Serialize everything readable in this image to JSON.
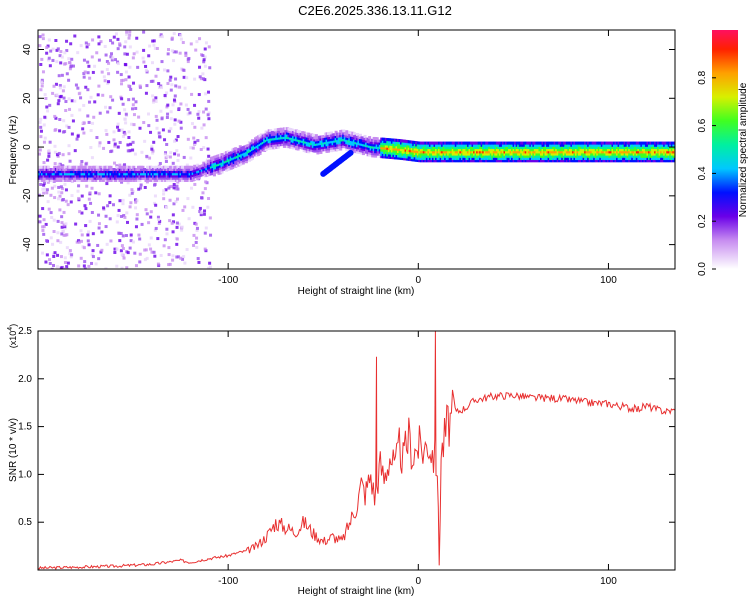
{
  "title": "C2E6.2025.336.13.11.G12",
  "colors": {
    "series": "#e83030",
    "frame": "#000000"
  },
  "chart_data": [
    {
      "type": "heatmap",
      "name": "spectrogram",
      "xlabel": "Height of straight line (km)",
      "ylabel": "Frequency (Hz)",
      "xlim": [
        -200,
        135
      ],
      "ylim": [
        -50,
        48
      ],
      "xticks": [
        -100,
        0,
        100
      ],
      "xtick_labels": [
        "-100",
        "0",
        "100"
      ],
      "yticks": [
        -40,
        -20,
        0,
        20,
        40
      ],
      "ytick_labels": [
        "-40",
        "-20",
        "0",
        "20",
        "40"
      ],
      "colorbar": {
        "label": "Normalized spectral amplitude",
        "range": [
          0,
          1
        ],
        "ticks": [
          0.0,
          0.2,
          0.4,
          0.6,
          0.8
        ],
        "tick_labels": [
          "0.0",
          "0.2",
          "0.4",
          "0.6",
          "0.8"
        ]
      },
      "trace": {
        "description_points": [
          [
            -200,
            -11
          ],
          [
            -160,
            -11
          ],
          [
            -120,
            -11
          ],
          [
            -105,
            -7
          ],
          [
            -90,
            -2
          ],
          [
            -80,
            3
          ],
          [
            -70,
            4
          ],
          [
            -55,
            1
          ],
          [
            -40,
            3
          ],
          [
            -25,
            0
          ],
          [
            -10,
            -1
          ],
          [
            0,
            -2
          ],
          [
            50,
            -2
          ],
          [
            100,
            -2
          ],
          [
            135,
            -2
          ]
        ]
      }
    },
    {
      "type": "line",
      "name": "snr",
      "xlabel": "Height of straight line (km)",
      "ylabel": "SNR (10 * v/v)",
      "y_scale_label": "(x10",
      "y_scale_exp": "4",
      "xlim": [
        -200,
        135
      ],
      "ylim": [
        0,
        2.5
      ],
      "xticks": [
        -100,
        0,
        100
      ],
      "xtick_labels": [
        "-100",
        "0",
        "100"
      ],
      "yticks": [
        0.5,
        1.0,
        1.5,
        2.0,
        2.5
      ],
      "ytick_labels": [
        "0.5",
        "1.0",
        "1.5",
        "2.0",
        "2.5"
      ],
      "series": [
        {
          "name": "SNR",
          "x": [
            -200,
            -180,
            -160,
            -140,
            -125,
            -120,
            -110,
            -100,
            -95,
            -90,
            -85,
            -80,
            -78,
            -75,
            -70,
            -65,
            -60,
            -55,
            -50,
            -45,
            -40,
            -35,
            -32,
            -30,
            -28,
            -25,
            -23,
            -20,
            -18,
            -15,
            -12,
            -10,
            -8,
            -5,
            -3,
            0,
            3,
            5,
            8,
            10,
            11,
            12,
            15,
            18,
            20,
            25,
            30,
            35,
            40,
            50,
            60,
            70,
            80,
            90,
            100,
            105,
            110,
            115,
            120,
            125,
            130,
            135
          ],
          "values": [
            0.02,
            0.03,
            0.04,
            0.06,
            0.1,
            0.08,
            0.12,
            0.15,
            0.18,
            0.2,
            0.25,
            0.35,
            0.4,
            0.5,
            0.45,
            0.4,
            0.5,
            0.38,
            0.3,
            0.35,
            0.3,
            0.55,
            0.7,
            0.9,
            0.8,
            1.0,
            0.75,
            1.1,
            0.95,
            1.2,
            1.05,
            1.3,
            1.15,
            1.4,
            1.2,
            1.3,
            1.25,
            1.35,
            1.2,
            1.1,
            0.05,
            1.2,
            1.5,
            1.6,
            1.65,
            1.7,
            1.78,
            1.8,
            1.82,
            1.83,
            1.8,
            1.8,
            1.78,
            1.75,
            1.74,
            1.72,
            1.7,
            1.68,
            1.72,
            1.68,
            1.66,
            1.67
          ]
        }
      ],
      "annotations": [
        {
          "x": -22,
          "value": 2.23,
          "label": "spike"
        },
        {
          "x": 9,
          "value": 2.5,
          "label": "spike"
        }
      ]
    }
  ]
}
